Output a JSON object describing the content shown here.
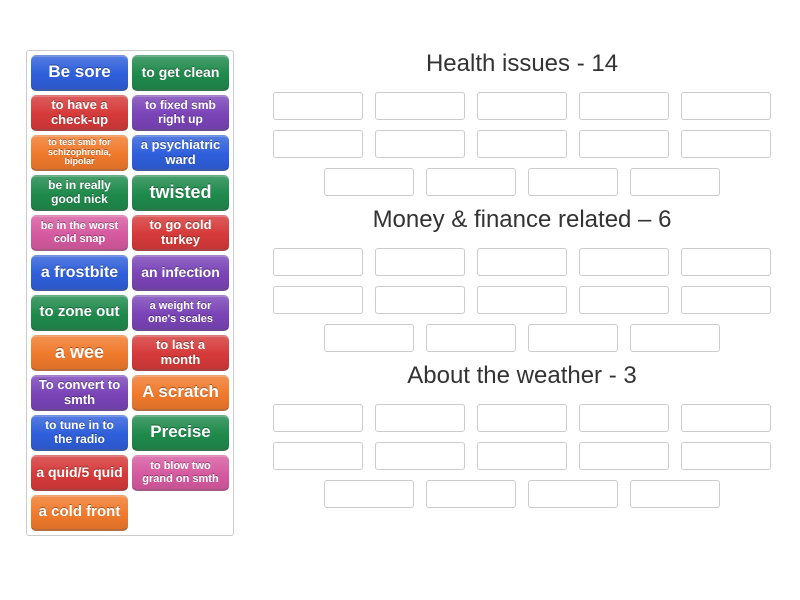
{
  "colors": {
    "blue": "#2f5fdb",
    "green": "#1f8a4c",
    "red": "#d63a3a",
    "orange": "#f07a2c",
    "purple": "#7a44b8",
    "pink": "#d65aa0",
    "border": "#cccccc",
    "text_dark": "#333333"
  },
  "tiles": [
    {
      "label": "Be sore",
      "color": "blue",
      "fs": 17
    },
    {
      "label": "to get clean",
      "color": "green",
      "fs": 14
    },
    {
      "label": "to have a check-up",
      "color": "red",
      "fs": 13
    },
    {
      "label": "to fixed smb right up",
      "color": "purple",
      "fs": 12
    },
    {
      "label": "to test smb for schizophrenia, bipolar",
      "color": "orange",
      "fs": 9
    },
    {
      "label": "a psychiatric ward",
      "color": "blue",
      "fs": 13
    },
    {
      "label": "be in really good nick",
      "color": "green",
      "fs": 12
    },
    {
      "label": "twisted",
      "color": "green",
      "fs": 18
    },
    {
      "label": "be in the worst cold snap",
      "color": "pink",
      "fs": 11
    },
    {
      "label": "to go cold turkey",
      "color": "red",
      "fs": 13
    },
    {
      "label": "a frostbite",
      "color": "blue",
      "fs": 16
    },
    {
      "label": "an infection",
      "color": "purple",
      "fs": 14
    },
    {
      "label": "to zone out",
      "color": "green",
      "fs": 15
    },
    {
      "label": "a weight for one's scales",
      "color": "purple",
      "fs": 11
    },
    {
      "label": "a wee",
      "color": "orange",
      "fs": 18
    },
    {
      "label": "to last a month",
      "color": "red",
      "fs": 13
    },
    {
      "label": "To convert to smth",
      "color": "purple",
      "fs": 13
    },
    {
      "label": "A scratch",
      "color": "orange",
      "fs": 17
    },
    {
      "label": "to tune in to the radio",
      "color": "blue",
      "fs": 12
    },
    {
      "label": "Precise",
      "color": "green",
      "fs": 17
    },
    {
      "label": "a quid/5 quid",
      "color": "red",
      "fs": 14
    },
    {
      "label": "to blow two grand on smth",
      "color": "pink",
      "fs": 11
    },
    {
      "label": "a cold front",
      "color": "orange",
      "fs": 15
    }
  ],
  "categories": [
    {
      "title": "Health issues - 14",
      "slots": 14
    },
    {
      "title": "Money & finance related – 6",
      "slots": 14
    },
    {
      "title": "About the weather - 3",
      "slots": 14
    }
  ]
}
